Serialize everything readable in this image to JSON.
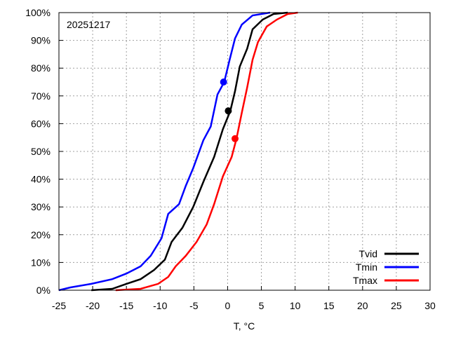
{
  "chart_data": {
    "type": "line",
    "title": "",
    "annotation": "20251217",
    "xlabel": "T, °C",
    "ylabel": "",
    "xlim": [
      -25,
      30
    ],
    "ylim": [
      0,
      100
    ],
    "xticks": [
      -25,
      -20,
      -15,
      -10,
      -5,
      0,
      5,
      10,
      15,
      20,
      25,
      30
    ],
    "yticks": [
      0,
      10,
      20,
      30,
      40,
      50,
      60,
      70,
      80,
      90,
      100
    ],
    "ytick_suffix": "%",
    "grid": true,
    "legend_placement": "bottom-right",
    "series": [
      {
        "name": "Tvid",
        "color": "#000000",
        "x": [
          -20.2,
          -17.1,
          -15,
          -12.9,
          -10.9,
          -9.3,
          -8.3,
          -6.7,
          -5.1,
          -3.6,
          -2,
          -0.7,
          0.4,
          1.1,
          1.8,
          2.9,
          3.7,
          5.2,
          6.8,
          8.9
        ],
        "y": [
          0,
          0.5,
          2.3,
          4,
          7.3,
          11,
          17.4,
          22.5,
          30,
          39,
          48,
          58,
          64.6,
          71.7,
          80.6,
          87,
          94,
          97.5,
          99.5,
          100
        ],
        "marker": {
          "x": 0.1,
          "y": 64.6
        }
      },
      {
        "name": "Tmin",
        "color": "#0000ff",
        "x": [
          -25,
          -23.3,
          -20.2,
          -17.1,
          -15,
          -12.9,
          -11.4,
          -9.8,
          -8.8,
          -7.2,
          -6.2,
          -5.1,
          -3.6,
          -2.5,
          -1.5,
          -0.5,
          0.3,
          1.1,
          2.1,
          3.7,
          6.3
        ],
        "y": [
          0,
          1,
          2.3,
          4,
          6,
          8.6,
          12.4,
          18.7,
          27.5,
          31,
          37.6,
          44,
          54,
          59,
          70.5,
          75,
          83,
          90.7,
          95.7,
          99,
          100
        ],
        "marker": {
          "x": -0.6,
          "y": 75
        }
      },
      {
        "name": "Tmax",
        "color": "#ff0000",
        "x": [
          -16.6,
          -12.9,
          -10.3,
          -8.8,
          -7.7,
          -6.2,
          -4.6,
          -3.1,
          -2,
          -0.7,
          0.6,
          1.3,
          2.1,
          2.9,
          3.7,
          4.5,
          5.8,
          7.3,
          8.9,
          10.4
        ],
        "y": [
          0,
          0.5,
          2.3,
          4.8,
          8.6,
          12.4,
          17.4,
          23.7,
          31,
          41,
          48,
          54.5,
          64,
          73,
          83,
          89.4,
          95,
          97.5,
          99.5,
          100
        ],
        "marker": {
          "x": 1.1,
          "y": 54.6
        }
      }
    ]
  }
}
